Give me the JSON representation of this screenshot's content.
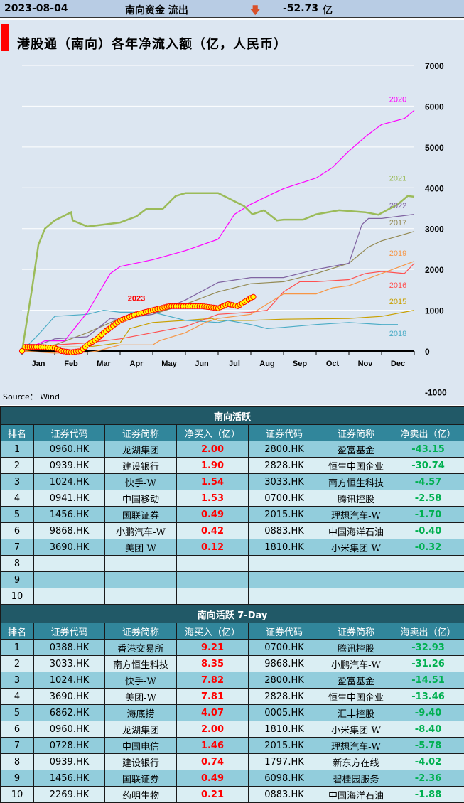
{
  "topbar": {
    "date": "2023-08-04",
    "label": "南向资金 流出",
    "arrow_icon": "down-arrow",
    "value": "-52.73",
    "unit": "亿"
  },
  "chart_title": "港股通（南向）各年净流入额（亿，人民币）",
  "source": "Source： Wind",
  "chart_data": {
    "type": "line",
    "title": "港股通（南向）各年净流入额（亿，人民币）",
    "x_ticks": [
      "Jan",
      "Feb",
      "Mar",
      "Apr",
      "May",
      "Jun",
      "Jul",
      "Aug",
      "Sep",
      "Oct",
      "Nov",
      "Dec"
    ],
    "y_ticks": [
      "7000",
      "6000",
      "5000",
      "4000",
      "3000",
      "2000",
      "1000",
      "0",
      "-1000"
    ],
    "ylim": [
      -1000,
      7000
    ],
    "grid": true,
    "series": [
      {
        "name": "2015",
        "color": "#c9a000",
        "points": [
          [
            0,
            0
          ],
          [
            1,
            100
          ],
          [
            2,
            100
          ],
          [
            3,
            200
          ],
          [
            3.3,
            550
          ],
          [
            4,
            700
          ],
          [
            5,
            750
          ],
          [
            5.8,
            800
          ],
          [
            6,
            750
          ],
          [
            7,
            750
          ],
          [
            8,
            780
          ],
          [
            10,
            800
          ],
          [
            11,
            850
          ],
          [
            12,
            1000
          ]
        ]
      },
      {
        "name": "2016",
        "color": "#ff5050",
        "points": [
          [
            0,
            0
          ],
          [
            1,
            150
          ],
          [
            2,
            200
          ],
          [
            3,
            300
          ],
          [
            4,
            450
          ],
          [
            5,
            600
          ],
          [
            6,
            900
          ],
          [
            7,
            950
          ],
          [
            7.5,
            1000
          ],
          [
            8,
            1450
          ],
          [
            8.5,
            1700
          ],
          [
            9,
            1700
          ],
          [
            10,
            1750
          ],
          [
            10.5,
            1900
          ],
          [
            11,
            1950
          ],
          [
            11.7,
            1900
          ],
          [
            12,
            2150
          ]
        ]
      },
      {
        "name": "2017",
        "color": "#948a54",
        "points": [
          [
            0,
            0
          ],
          [
            1,
            150
          ],
          [
            2,
            450
          ],
          [
            3,
            800
          ],
          [
            4,
            900
          ],
          [
            5,
            1150
          ],
          [
            6,
            1450
          ],
          [
            7,
            1650
          ],
          [
            8,
            1700
          ],
          [
            9,
            1900
          ],
          [
            10,
            2150
          ],
          [
            10.6,
            2550
          ],
          [
            11,
            2700
          ],
          [
            12,
            2930
          ]
        ]
      },
      {
        "name": "2018",
        "color": "#4bacc6",
        "points": [
          [
            0,
            0
          ],
          [
            0.5,
            400
          ],
          [
            1,
            850
          ],
          [
            2,
            900
          ],
          [
            2.5,
            1000
          ],
          [
            3,
            950
          ],
          [
            4,
            950
          ],
          [
            5,
            750
          ],
          [
            6,
            700
          ],
          [
            6.3,
            750
          ],
          [
            7,
            650
          ],
          [
            7.5,
            550
          ],
          [
            8,
            580
          ],
          [
            9,
            650
          ],
          [
            10,
            700
          ],
          [
            11,
            650
          ],
          [
            11.5,
            650
          ]
        ]
      },
      {
        "name": "2019",
        "color": "#f79646",
        "points": [
          [
            0,
            0
          ],
          [
            1,
            -50
          ],
          [
            2,
            -30
          ],
          [
            2.3,
            0
          ],
          [
            3,
            150
          ],
          [
            4,
            150
          ],
          [
            4.2,
            250
          ],
          [
            5,
            450
          ],
          [
            5.6,
            700
          ],
          [
            6,
            800
          ],
          [
            7,
            900
          ],
          [
            7.4,
            1100
          ],
          [
            8,
            1400
          ],
          [
            9,
            1400
          ],
          [
            9.5,
            1550
          ],
          [
            10,
            1600
          ],
          [
            11,
            1900
          ],
          [
            12,
            2200
          ]
        ]
      },
      {
        "name": "2020",
        "color": "#ff00ff",
        "points": [
          [
            0,
            0
          ],
          [
            0.7,
            250
          ],
          [
            1.3,
            250
          ],
          [
            2,
            950
          ],
          [
            2.7,
            1900
          ],
          [
            3,
            2070
          ],
          [
            4,
            2240
          ],
          [
            5,
            2460
          ],
          [
            6,
            2740
          ],
          [
            6.5,
            3350
          ],
          [
            7,
            3600
          ],
          [
            8,
            3980
          ],
          [
            9,
            4240
          ],
          [
            9.5,
            4500
          ],
          [
            10,
            4900
          ],
          [
            10.5,
            5250
          ],
          [
            11,
            5550
          ],
          [
            11.7,
            5700
          ],
          [
            12,
            5900
          ]
        ]
      },
      {
        "name": "2021",
        "color": "#9bbb59",
        "points": [
          [
            0,
            0
          ],
          [
            0.3,
            1500
          ],
          [
            0.5,
            2600
          ],
          [
            0.7,
            3000
          ],
          [
            1,
            3200
          ],
          [
            1.5,
            3400
          ],
          [
            1.55,
            3200
          ],
          [
            2,
            3050
          ],
          [
            2.5,
            3100
          ],
          [
            3,
            3150
          ],
          [
            3.5,
            3300
          ],
          [
            3.8,
            3480
          ],
          [
            4.3,
            3480
          ],
          [
            4.7,
            3800
          ],
          [
            5,
            3870
          ],
          [
            6,
            3870
          ],
          [
            6.3,
            3750
          ],
          [
            6.8,
            3550
          ],
          [
            7.05,
            3350
          ],
          [
            7.4,
            3450
          ],
          [
            7.8,
            3200
          ],
          [
            8,
            3220
          ],
          [
            8.6,
            3220
          ],
          [
            9,
            3350
          ],
          [
            9.7,
            3450
          ],
          [
            10.5,
            3400
          ],
          [
            10.9,
            3340
          ],
          [
            11.5,
            3600
          ],
          [
            11.8,
            3800
          ],
          [
            12,
            3780
          ]
        ]
      },
      {
        "name": "2022",
        "color": "#8064a2",
        "points": [
          [
            0,
            0
          ],
          [
            1,
            300
          ],
          [
            2,
            350
          ],
          [
            2.7,
            800
          ],
          [
            3,
            770
          ],
          [
            4,
            900
          ],
          [
            5,
            1250
          ],
          [
            6,
            1680
          ],
          [
            7,
            1800
          ],
          [
            8,
            1800
          ],
          [
            9,
            2000
          ],
          [
            10,
            2150
          ],
          [
            10.4,
            3100
          ],
          [
            10.6,
            3250
          ],
          [
            11,
            3250
          ],
          [
            12,
            3350
          ]
        ]
      },
      {
        "name": "2023",
        "color": "#ff0000",
        "marker": "#ffff00",
        "points": [
          [
            0,
            0
          ],
          [
            0.1,
            100
          ],
          [
            0.5,
            100
          ],
          [
            1,
            80
          ],
          [
            1.2,
            0
          ],
          [
            1.5,
            -30
          ],
          [
            1.8,
            0
          ],
          [
            2,
            150
          ],
          [
            2.3,
            300
          ],
          [
            2.5,
            450
          ],
          [
            3,
            750
          ],
          [
            3.5,
            900
          ],
          [
            4,
            1000
          ],
          [
            4.5,
            1100
          ],
          [
            5,
            1100
          ],
          [
            5.5,
            1100
          ],
          [
            6,
            1050
          ],
          [
            6.3,
            1150
          ],
          [
            6.6,
            1100
          ],
          [
            7,
            1300
          ],
          [
            7.15,
            1350
          ]
        ]
      }
    ]
  },
  "table1": {
    "title": "南向活跃",
    "headers": [
      "排名",
      "证券代码",
      "证券简称",
      "净买入（亿）",
      "证券代码",
      "证券简称",
      "净卖出（亿）"
    ],
    "rows": [
      [
        "1",
        "0960.HK",
        "龙湖集团",
        "2.00",
        "2800.HK",
        "盈富基金",
        "-43.15"
      ],
      [
        "2",
        "0939.HK",
        "建设银行",
        "1.90",
        "2828.HK",
        "恒生中国企业",
        "-30.74"
      ],
      [
        "3",
        "1024.HK",
        "快手-W",
        "1.54",
        "3033.HK",
        "南方恒生科技",
        "-4.57"
      ],
      [
        "4",
        "0941.HK",
        "中国移动",
        "1.53",
        "0700.HK",
        "腾讯控股",
        "-2.58"
      ],
      [
        "5",
        "1456.HK",
        "国联证券",
        "0.49",
        "2015.HK",
        "理想汽车-W",
        "-1.70"
      ],
      [
        "6",
        "9868.HK",
        "小鹏汽车-W",
        "0.42",
        "0883.HK",
        "中国海洋石油",
        "-0.40"
      ],
      [
        "7",
        "3690.HK",
        "美团-W",
        "0.12",
        "1810.HK",
        "小米集团-W",
        "-0.32"
      ],
      [
        "8",
        "",
        "",
        "",
        "",
        "",
        ""
      ],
      [
        "9",
        "",
        "",
        "",
        "",
        "",
        ""
      ],
      [
        "10",
        "",
        "",
        "",
        "",
        "",
        ""
      ]
    ]
  },
  "table2": {
    "title": "南向活跃 7-Day",
    "headers": [
      "排名",
      "证券代码",
      "证券简称",
      "海买入（亿）",
      "证券代码",
      "证券简称",
      "海卖出（亿）"
    ],
    "rows": [
      [
        "1",
        "0388.HK",
        "香港交易所",
        "9.21",
        "0700.HK",
        "腾讯控股",
        "-32.93"
      ],
      [
        "2",
        "3033.HK",
        "南方恒生科技",
        "8.35",
        "9868.HK",
        "小鹏汽车-W",
        "-31.26"
      ],
      [
        "3",
        "1024.HK",
        "快手-W",
        "7.82",
        "2800.HK",
        "盈富基金",
        "-14.51"
      ],
      [
        "4",
        "3690.HK",
        "美团-W",
        "7.81",
        "2828.HK",
        "恒生中国企业",
        "-13.46"
      ],
      [
        "5",
        "6862.HK",
        "海底捞",
        "4.07",
        "0005.HK",
        "汇丰控股",
        "-9.40"
      ],
      [
        "6",
        "0960.HK",
        "龙湖集团",
        "2.00",
        "1810.HK",
        "小米集团-W",
        "-8.40"
      ],
      [
        "7",
        "0728.HK",
        "中国电信",
        "1.46",
        "2015.HK",
        "理想汽车-W",
        "-5.78"
      ],
      [
        "8",
        "0939.HK",
        "建设银行",
        "0.74",
        "1797.HK",
        "新东方在线",
        "-4.02"
      ],
      [
        "9",
        "1456.HK",
        "国联证券",
        "0.49",
        "6098.HK",
        "碧桂园服务",
        "-2.36"
      ],
      [
        "10",
        "2269.HK",
        "药明生物",
        "0.21",
        "0883.HK",
        "中国海洋石油",
        "-1.88"
      ]
    ]
  }
}
